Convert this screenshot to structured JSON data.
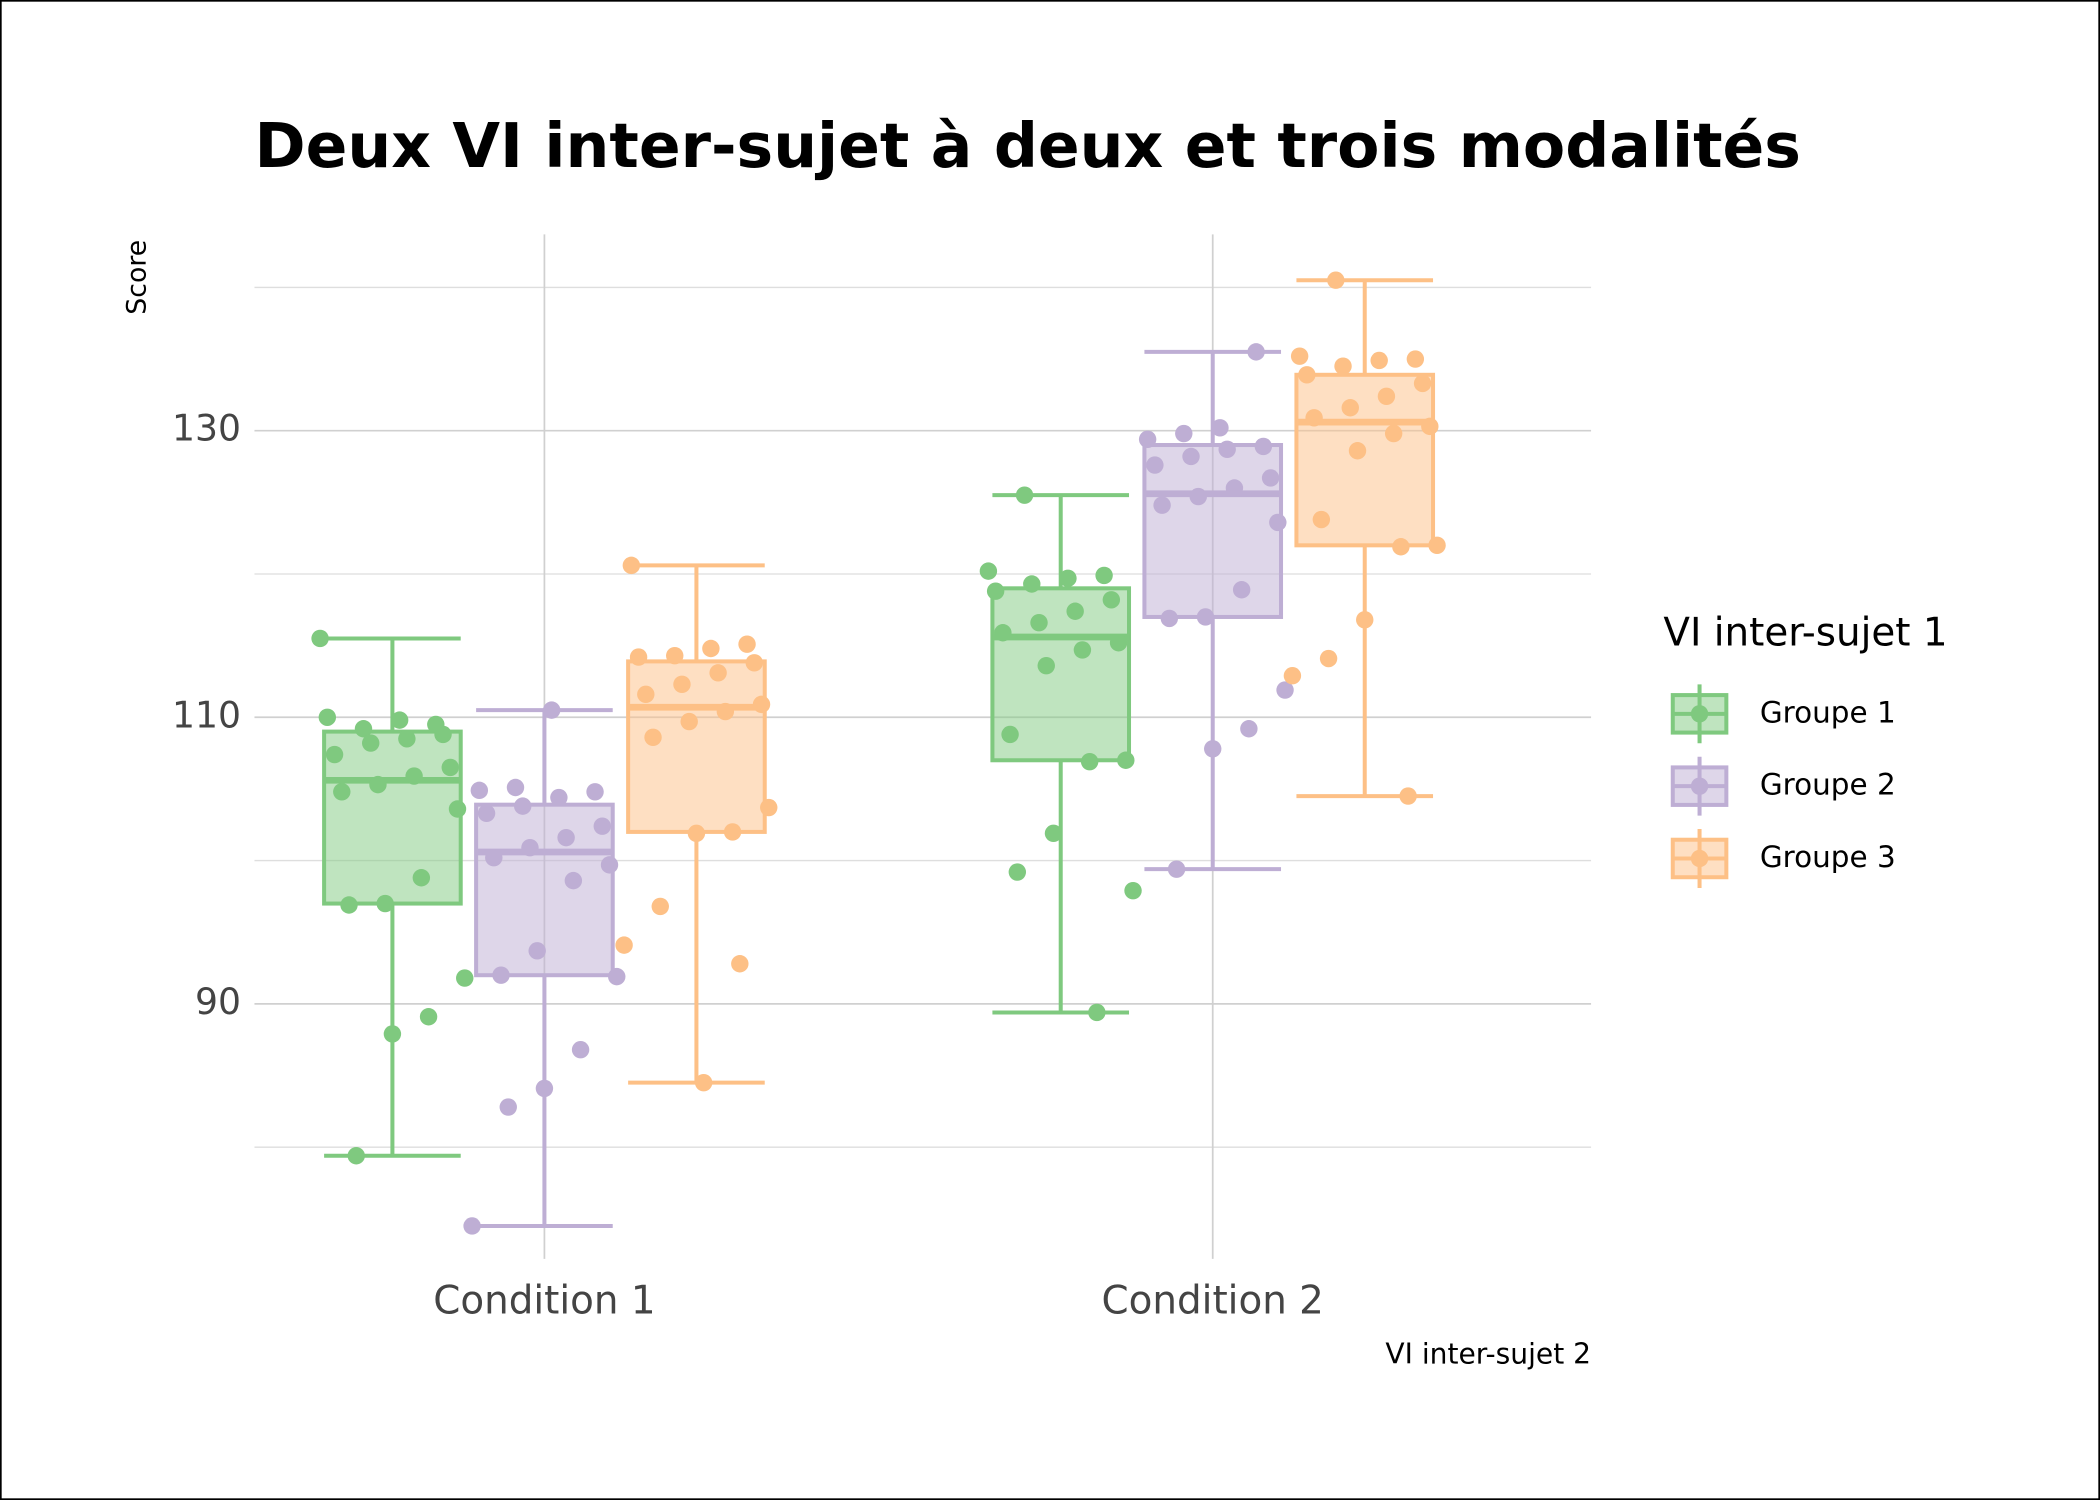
{
  "chart_data": {
    "type": "box",
    "title": "Deux VI inter-sujet à deux et trois modalités",
    "y_label": "Score",
    "x_label": "VI inter-sujet 2",
    "legend_title": "VI inter-sujet 1",
    "legend_position": "right",
    "categories": [
      "Condition 1",
      "Condition 2"
    ],
    "ylim": [
      72.2,
      143.7
    ],
    "yticks": [
      90,
      110,
      130
    ],
    "yminorticks": [
      80,
      100,
      120,
      140
    ],
    "grid": true,
    "series": [
      {
        "name": "Groupe 1",
        "color": "#7fc97f",
        "boxes": [
          {
            "whislo": 79.4,
            "q1": 97.0,
            "med": 105.6,
            "q3": 109.0,
            "whishi": 115.5
          },
          {
            "whislo": 89.4,
            "q1": 107.0,
            "med": 115.6,
            "q3": 119.0,
            "whishi": 125.5
          }
        ],
        "points": [
          [
            115.5,
            109.5,
            109.8,
            109.2,
            110.0,
            108.8,
            108.5,
            108.2,
            107.4,
            106.5,
            105.9,
            105.3,
            104.8,
            103.6,
            98.8,
            97.0,
            96.9,
            91.8,
            89.1,
            87.9,
            79.4
          ],
          [
            125.5,
            120.2,
            119.9,
            119.7,
            119.3,
            118.8,
            118.2,
            117.4,
            116.6,
            115.9,
            115.2,
            114.7,
            113.6,
            108.8,
            107.0,
            106.9,
            101.9,
            99.2,
            97.9,
            89.4
          ]
        ]
      },
      {
        "name": "Groupe 2",
        "color": "#beaed4",
        "boxes": [
          {
            "whislo": 74.5,
            "q1": 92.0,
            "med": 100.6,
            "q3": 103.9,
            "whishi": 110.5
          },
          {
            "whislo": 99.4,
            "q1": 117.0,
            "med": 125.6,
            "q3": 129.0,
            "whishi": 135.5
          }
        ],
        "points": [
          [
            110.5,
            105.1,
            104.9,
            104.8,
            104.4,
            103.8,
            103.3,
            102.4,
            101.6,
            100.9,
            100.2,
            99.7,
            98.6,
            93.7,
            92.0,
            91.9,
            86.8,
            84.1,
            82.8,
            74.5
          ],
          [
            135.5,
            130.2,
            129.8,
            129.4,
            128.9,
            128.7,
            128.2,
            127.6,
            126.7,
            126.0,
            125.4,
            124.8,
            123.6,
            118.9,
            117.0,
            116.9,
            111.9,
            109.2,
            107.8,
            99.4
          ]
        ]
      },
      {
        "name": "Groupe 3",
        "color": "#fdc086",
        "boxes": [
          {
            "whislo": 84.5,
            "q1": 102.0,
            "med": 110.7,
            "q3": 113.9,
            "whishi": 120.6
          },
          {
            "whislo": 104.5,
            "q1": 122.0,
            "med": 130.6,
            "q3": 133.9,
            "whishi": 140.5
          }
        ],
        "points": [
          [
            120.6,
            115.1,
            114.8,
            114.3,
            114.2,
            113.8,
            113.1,
            112.3,
            111.6,
            110.9,
            110.4,
            109.7,
            108.6,
            103.7,
            102.0,
            101.9,
            96.8,
            94.1,
            92.8,
            84.5
          ],
          [
            140.5,
            135.2,
            135.0,
            134.9,
            134.5,
            133.9,
            133.3,
            132.4,
            131.6,
            130.9,
            130.3,
            129.8,
            128.6,
            123.8,
            122.0,
            121.9,
            116.8,
            114.1,
            112.9,
            104.5
          ]
        ]
      }
    ]
  }
}
